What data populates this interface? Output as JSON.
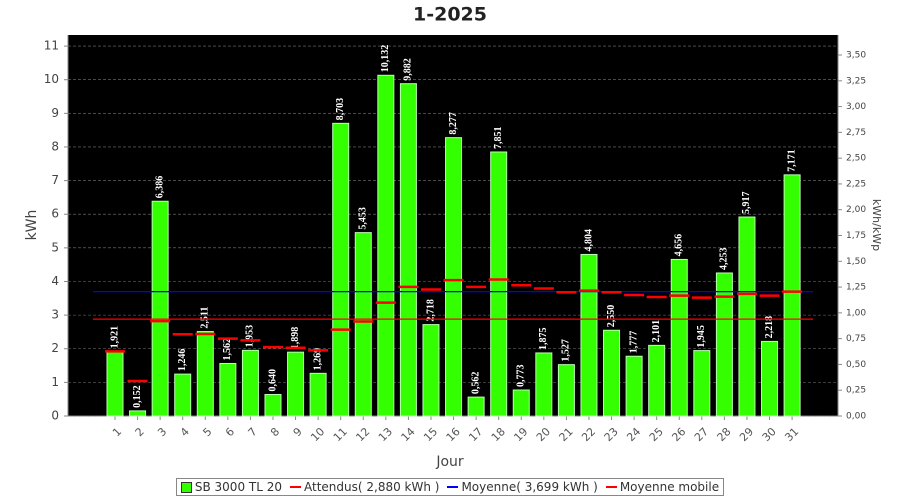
{
  "chart_data": {
    "type": "bar",
    "title": "1-2025",
    "x_label": "Jour",
    "y_label": "kWh",
    "y2_label": "kWh/kWp",
    "categories": [
      "1",
      "2",
      "3",
      "4",
      "5",
      "6",
      "7",
      "8",
      "9",
      "10",
      "11",
      "12",
      "13",
      "14",
      "15",
      "16",
      "17",
      "18",
      "19",
      "20",
      "21",
      "22",
      "23",
      "24",
      "25",
      "26",
      "27",
      "28",
      "29",
      "30",
      "31"
    ],
    "series": [
      {
        "name": "SB 3000 TL 20",
        "color": "#33ff00",
        "values": [
          1.921,
          0.152,
          6.386,
          1.246,
          2.511,
          1.562,
          1.953,
          0.64,
          1.898,
          1.269,
          8.703,
          5.453,
          10.132,
          9.882,
          2.718,
          8.277,
          0.562,
          7.851,
          0.773,
          1.875,
          1.527,
          4.804,
          2.55,
          1.777,
          2.101,
          4.656,
          1.945,
          4.253,
          5.917,
          2.218,
          7.171
        ],
        "value_labels": [
          "1,921",
          "0,152",
          "6,386",
          "1,246",
          "2,511",
          "1,562",
          "1,953",
          "0,640",
          "1,898",
          "1,269",
          "8,703",
          "5,453",
          "10,132",
          "9,882",
          "2,718",
          "8,277",
          "0,562",
          "7,851",
          "0,773",
          "1,875",
          "1,527",
          "4,804",
          "2,550",
          "1,777",
          "2,101",
          "4,656",
          "1,945",
          "4,253",
          "5,917",
          "2,218",
          "7,171"
        ]
      },
      {
        "name": "Attendus( 2,880 kWh )",
        "color": "#ff0000",
        "value": 2.88
      },
      {
        "name": "Moyenne( 3,699 kWh )",
        "color": "#0000ff",
        "value": 3.699
      },
      {
        "name": "Moyenne mobile",
        "color": "#ff0000",
        "values": [
          1.92,
          1.04,
          2.82,
          2.43,
          2.44,
          2.3,
          2.25,
          2.05,
          2.03,
          1.95,
          2.57,
          2.81,
          3.37,
          3.84,
          3.76,
          4.04,
          3.84,
          4.06,
          3.89,
          3.79,
          3.68,
          3.73,
          3.68,
          3.6,
          3.54,
          3.58,
          3.52,
          3.55,
          3.63,
          3.58,
          3.7
        ]
      }
    ],
    "ylim": [
      0,
      11.33
    ],
    "yticks": [
      0,
      1,
      2,
      3,
      4,
      5,
      6,
      7,
      8,
      9,
      10,
      11
    ],
    "y2lim": [
      0,
      3.694
    ],
    "y2ticks": [
      {
        "value": 0,
        "label": "0,00"
      },
      {
        "value": 0.25,
        "label": "0,25"
      },
      {
        "value": 0.5,
        "label": "0,50"
      },
      {
        "value": 0.75,
        "label": "0,75"
      },
      {
        "value": 1,
        "label": "1,00"
      },
      {
        "value": 1.25,
        "label": "1,25"
      },
      {
        "value": 1.5,
        "label": "1,50"
      },
      {
        "value": 1.75,
        "label": "1,75"
      },
      {
        "value": 2,
        "label": "2,00"
      },
      {
        "value": 2.25,
        "label": "2,25"
      },
      {
        "value": 2.5,
        "label": "2,50"
      },
      {
        "value": 2.75,
        "label": "2,75"
      },
      {
        "value": 3,
        "label": "3,00"
      },
      {
        "value": 3.25,
        "label": "3,25"
      },
      {
        "value": 3.5,
        "label": "3,50"
      }
    ],
    "grid": true,
    "legend": "bottom"
  }
}
